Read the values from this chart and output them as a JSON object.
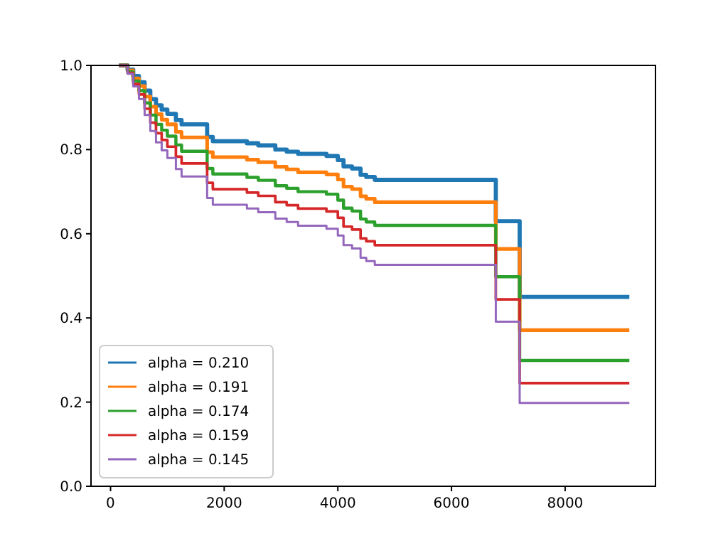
{
  "chart_data": {
    "type": "step",
    "x": [
      150,
      300,
      400,
      500,
      600,
      700,
      800,
      900,
      1000,
      1150,
      1250,
      1700,
      1800,
      2400,
      2600,
      2900,
      3100,
      3300,
      3800,
      4000,
      4100,
      4250,
      4400,
      4500,
      4650,
      6780,
      7200,
      9130
    ],
    "series": [
      {
        "name": "alpha = 0.210",
        "color": "#1f77b4",
        "values": [
          1,
          0.99,
          0.975,
          0.96,
          0.94,
          0.92,
          0.905,
          0.895,
          0.885,
          0.87,
          0.86,
          0.83,
          0.82,
          0.815,
          0.81,
          0.8,
          0.795,
          0.79,
          0.785,
          0.775,
          0.76,
          0.755,
          0.74,
          0.735,
          0.728,
          0.63,
          0.45,
          0.45
        ]
      },
      {
        "name": "alpha = 0.191",
        "color": "#ff7f0e",
        "values": [
          1,
          0.988,
          0.969,
          0.951,
          0.926,
          0.902,
          0.884,
          0.871,
          0.86,
          0.842,
          0.829,
          0.794,
          0.782,
          0.776,
          0.77,
          0.759,
          0.753,
          0.746,
          0.741,
          0.729,
          0.712,
          0.706,
          0.689,
          0.683,
          0.675,
          0.564,
          0.371,
          0.371
        ]
      },
      {
        "name": "alpha = 0.174",
        "color": "#2ca02c",
        "values": [
          1,
          0.985,
          0.963,
          0.94,
          0.911,
          0.882,
          0.86,
          0.846,
          0.832,
          0.811,
          0.796,
          0.755,
          0.742,
          0.734,
          0.727,
          0.714,
          0.708,
          0.7,
          0.694,
          0.68,
          0.661,
          0.654,
          0.635,
          0.628,
          0.62,
          0.498,
          0.299,
          0.299
        ]
      },
      {
        "name": "alpha = 0.159",
        "color": "#d62728",
        "values": [
          1,
          0.982,
          0.956,
          0.931,
          0.897,
          0.864,
          0.839,
          0.823,
          0.807,
          0.783,
          0.767,
          0.721,
          0.706,
          0.698,
          0.69,
          0.675,
          0.668,
          0.66,
          0.653,
          0.638,
          0.617,
          0.61,
          0.589,
          0.582,
          0.573,
          0.444,
          0.245,
          0.245
        ]
      },
      {
        "name": "alpha = 0.145",
        "color": "#9467bd",
        "values": [
          1,
          0.98,
          0.95,
          0.92,
          0.882,
          0.844,
          0.817,
          0.798,
          0.78,
          0.754,
          0.736,
          0.685,
          0.669,
          0.66,
          0.651,
          0.636,
          0.628,
          0.619,
          0.612,
          0.596,
          0.573,
          0.565,
          0.543,
          0.535,
          0.526,
          0.391,
          0.198,
          0.198
        ]
      }
    ],
    "xlim": [
      -344,
      9590
    ],
    "ylim": [
      0,
      1
    ],
    "xticks": [
      0,
      2000,
      4000,
      6000,
      8000
    ],
    "yticks": [
      {
        "value": 0,
        "label": "0.0"
      },
      {
        "value": 0.2,
        "label": "0.2"
      },
      {
        "value": 0.4,
        "label": "0.4"
      },
      {
        "value": 0.6,
        "label": "0.6"
      },
      {
        "value": 0.8,
        "label": "0.8"
      },
      {
        "value": 1,
        "label": "1.0"
      }
    ],
    "grid": false,
    "legend": "bottom left"
  }
}
